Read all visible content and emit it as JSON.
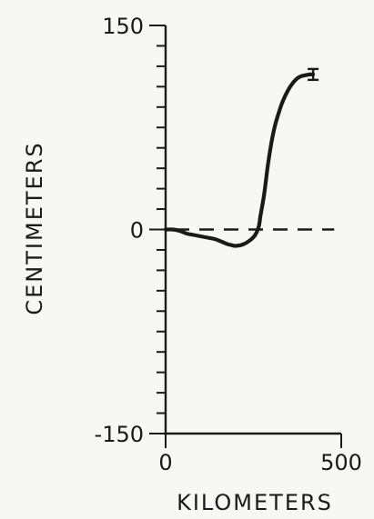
{
  "chart_data": {
    "type": "line",
    "title": "",
    "xlabel": "KILOMETERS",
    "ylabel": "CENTIMETERS",
    "xlim": [
      0,
      500
    ],
    "ylim": [
      -150,
      150
    ],
    "x_tick_labels": [
      "0",
      "500"
    ],
    "x_tick_values": [
      0,
      500
    ],
    "y_tick_labels": [
      "150",
      "0",
      "-150"
    ],
    "y_tick_values": [
      150,
      0,
      -150
    ],
    "y_minor_step": 15,
    "grid": false,
    "legend": "none",
    "reference_line": {
      "y": 0,
      "style": "dashed",
      "x_range": [
        0,
        480
      ]
    },
    "series": [
      {
        "x": [
          0,
          20,
          40,
          60,
          80,
          100,
          120,
          140,
          160,
          180,
          200,
          220,
          240,
          255,
          265,
          270,
          280,
          290,
          300,
          310,
          320,
          330,
          340,
          350,
          360,
          370,
          380,
          390,
          400,
          410,
          420
        ],
        "values": [
          0,
          0,
          -1,
          -3,
          -4,
          -5,
          -6,
          -7,
          -9,
          -11,
          -12,
          -11,
          -8,
          -4,
          2,
          10,
          25,
          45,
          62,
          75,
          84,
          92,
          98,
          103,
          107,
          110,
          112,
          113,
          113.5,
          114,
          114
        ],
        "color": "#1a1a1a"
      }
    ],
    "error_bar": {
      "x": 420,
      "y": 114,
      "minus": 4,
      "plus": 4
    }
  }
}
